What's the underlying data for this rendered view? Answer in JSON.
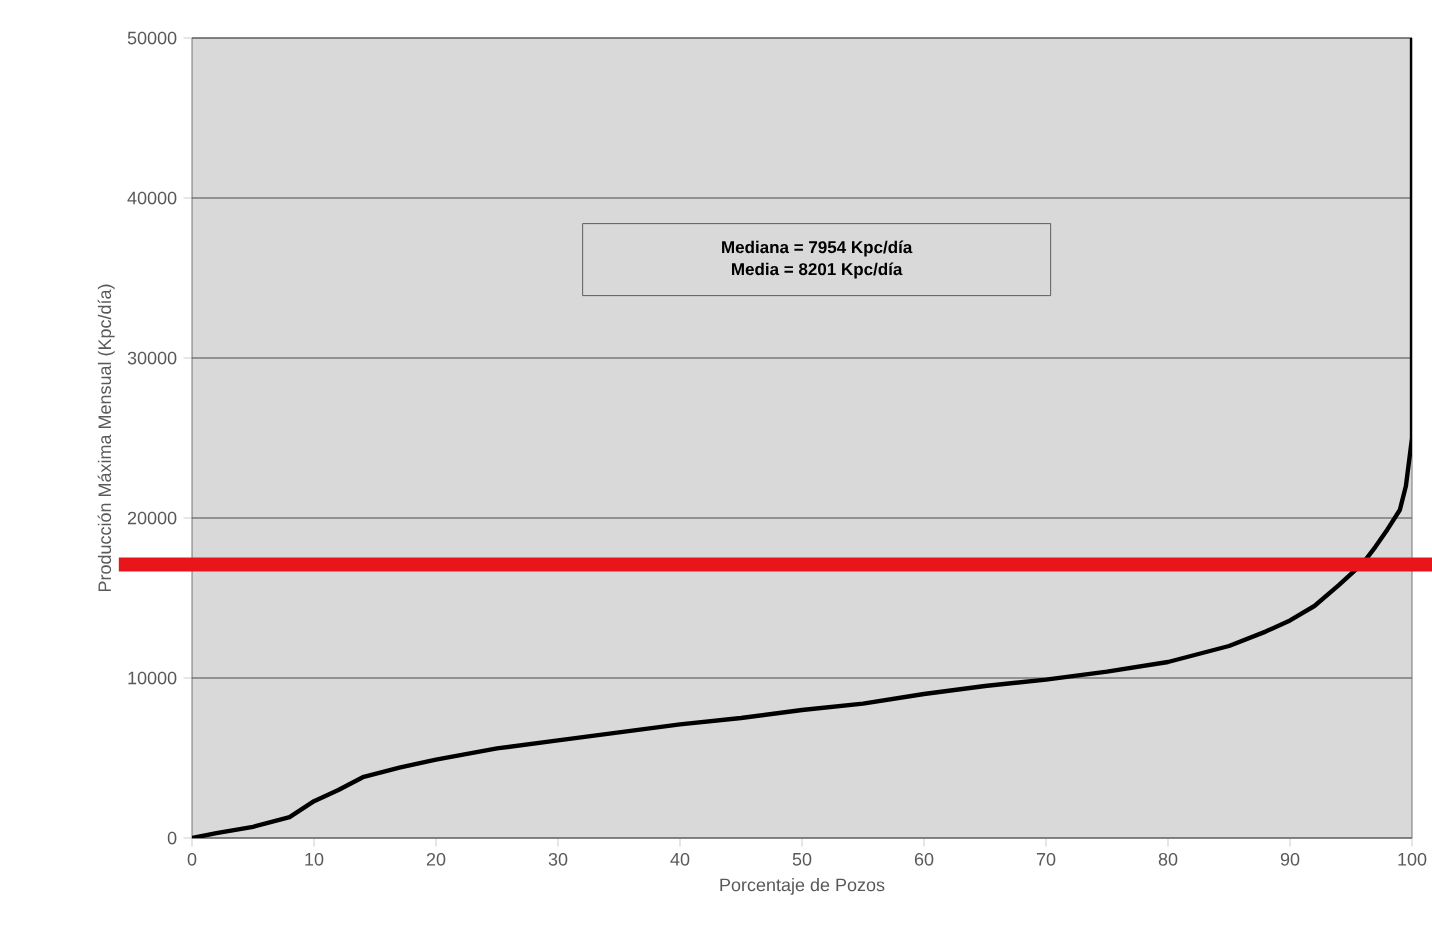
{
  "chart_data": {
    "type": "line",
    "xlabel": "Porcentaje de Pozos",
    "ylabel": "Producción Máxima Mensual (Kpc/día)",
    "annotations": [
      "Mediana = 7954 Kpc/día",
      "Media = 8201 Kpc/día"
    ],
    "x": [
      0,
      2,
      5,
      8,
      10,
      12,
      14,
      17,
      20,
      25,
      30,
      35,
      40,
      45,
      50,
      55,
      60,
      65,
      70,
      75,
      80,
      85,
      88,
      90,
      92,
      94,
      96,
      97,
      98,
      99,
      99.5,
      100,
      100
    ],
    "series": [
      {
        "color": "#000000",
        "values": [
          0,
          300,
          700,
          1300,
          2300,
          3000,
          3800,
          4400,
          4900,
          5600,
          6100,
          6600,
          7100,
          7500,
          8000,
          8400,
          9000,
          9500,
          9900,
          10400,
          11000,
          12000,
          12900,
          13600,
          14500,
          15800,
          17200,
          18200,
          19300,
          20500,
          22000,
          25000,
          50000
        ]
      }
    ],
    "xlim": [
      0,
      100
    ],
    "ylim": [
      0,
      50000
    ],
    "xticks": [
      0,
      10,
      20,
      30,
      40,
      50,
      60,
      70,
      80,
      90,
      100
    ],
    "yticks": [
      0,
      10000,
      20000,
      30000,
      40000,
      50000
    ],
    "grid": "y",
    "marker": "none",
    "line_style": "solid",
    "ref_lines": [
      {
        "axis": "y",
        "value": 17100,
        "color": "#e8161b"
      }
    ]
  }
}
